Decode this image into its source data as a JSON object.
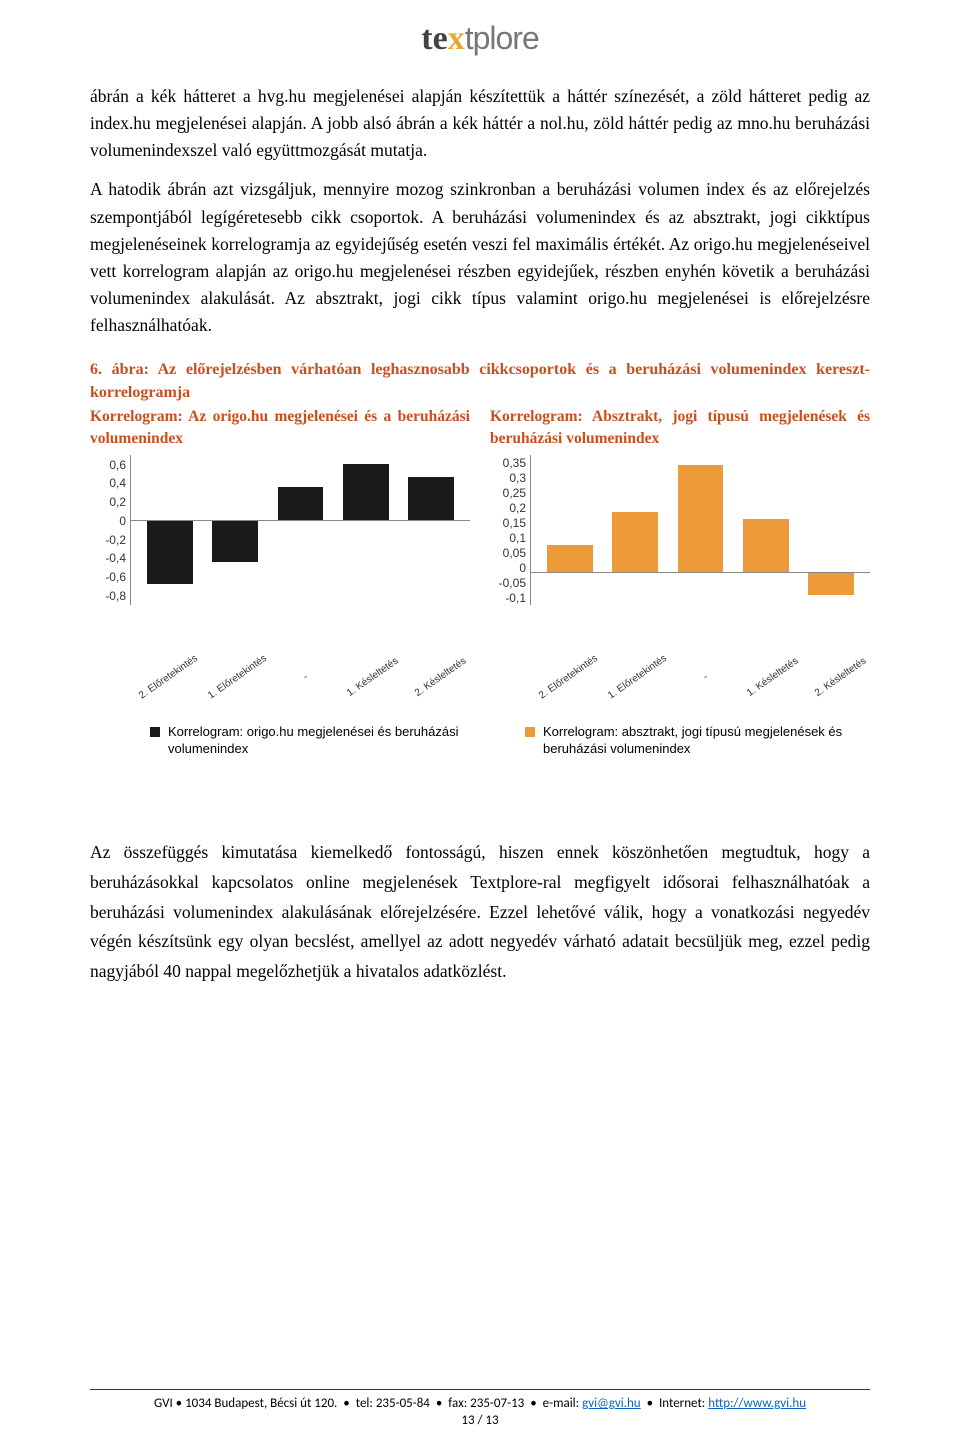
{
  "logo": {
    "part1": "te",
    "x": "x",
    "part2": "tplore"
  },
  "para1": "ábrán a kék hátteret a hvg.hu megjelenései alapján készítettük a háttér színezését, a zöld hátteret pedig az index.hu megjelenései alapján. A jobb alsó ábrán a kék háttér a nol.hu, zöld háttér pedig az mno.hu beruházási volumenindexszel való együttmozgását mutatja.",
  "para2": "A hatodik ábrán azt vizsgáljuk, mennyire mozog szinkronban a beruházási volumen index és az előrejelzés szempontjából legígéretesebb cikk csoportok. A beruházási volumenindex és az absztrakt, jogi cikktípus megjelenéseinek korrelogramja az egyidejűség esetén veszi fel maximális értékét. Az origo.hu megjelenéseivel vett korrelogram alapján az origo.hu megjelenései részben egyidejűek, részben enyhén követik a beruházási volumenindex alakulását. Az absztrakt, jogi cikk típus valamint origo.hu megjelenései is előrejelzésre felhasználhatóak.",
  "fig_caption": "6. ábra: Az előrejelzésben várhatóan leghasznosabb cikkcsoportok és a beruházási volumenindex kereszt-korrelogramja",
  "chart_left_title": "Korrelogram: Az origo.hu megjelenései és a beruházási volumenindex",
  "chart_right_title": "Korrelogram: Absztrakt, jogi típusú megjelenések és beruházási volumenindex",
  "chart_left": {
    "type": "bar",
    "categories": [
      "2. Előretekintés",
      "1. Előretekintés",
      "-",
      "1. Késleltetés",
      "2. Késleltetés"
    ],
    "values": [
      -0.6,
      -0.4,
      0.3,
      0.52,
      0.4
    ],
    "ylim": [
      -0.8,
      0.6
    ],
    "ytick_step": 0.2,
    "y_ticks": [
      "0,6",
      "0,4",
      "0,2",
      "0",
      "-0,2",
      "-0,4",
      "-0,6",
      "-0,8"
    ],
    "bar_color": "#1a1a1a",
    "axis_color": "#888888",
    "label_fontsize": 10
  },
  "chart_right": {
    "type": "bar",
    "categories": [
      "2. Előretekintés",
      "1. Előretekintés",
      "-",
      "1. Késleltetés",
      "2. Késleltetés"
    ],
    "values": [
      0.08,
      0.18,
      0.32,
      0.16,
      -0.07
    ],
    "ylim": [
      -0.1,
      0.35
    ],
    "ytick_step": 0.05,
    "y_ticks": [
      "0,35",
      "0,3",
      "0,25",
      "0,2",
      "0,15",
      "0,1",
      "0,05",
      "0",
      "-0,05",
      "-0,1"
    ],
    "bar_color": "#ee9a3a",
    "axis_color": "#888888",
    "label_fontsize": 10
  },
  "legend_left": "Korrelogram: origo.hu megjelenései és beruházási volumenindex",
  "legend_right": "Korrelogram: absztrakt, jogi típusú megjelenések és beruházási volumenindex",
  "legend_left_color": "#1a1a1a",
  "legend_right_color": "#ee9a3a",
  "para3": "Az összefüggés kimutatása kiemelkedő fontosságú, hiszen ennek köszönhetően megtudtuk, hogy a beruházásokkal kapcsolatos online megjelenések Textplore-ral megfigyelt idősorai felhasználhatóak a beruházási volumenindex alakulásának előrejelzésére. Ezzel lehetővé válik, hogy a vonatkozási negyedév végén készítsünk egy olyan becslést, amellyel az adott negyedév várható adatait becsüljük meg, ezzel pedig nagyjából 40 nappal megelőzhetjük a hivatalos adatközlést.",
  "footer": {
    "address": "GVI • 1034 Budapest, Bécsi út 120.",
    "tel": "tel: 235-05-84",
    "fax": "fax: 235-07-13",
    "email_label": "e-mail:",
    "email": "gvi@gvi.hu",
    "web_label": "Internet:",
    "web": "http://www.gvi.hu",
    "page": "13 / 13"
  }
}
